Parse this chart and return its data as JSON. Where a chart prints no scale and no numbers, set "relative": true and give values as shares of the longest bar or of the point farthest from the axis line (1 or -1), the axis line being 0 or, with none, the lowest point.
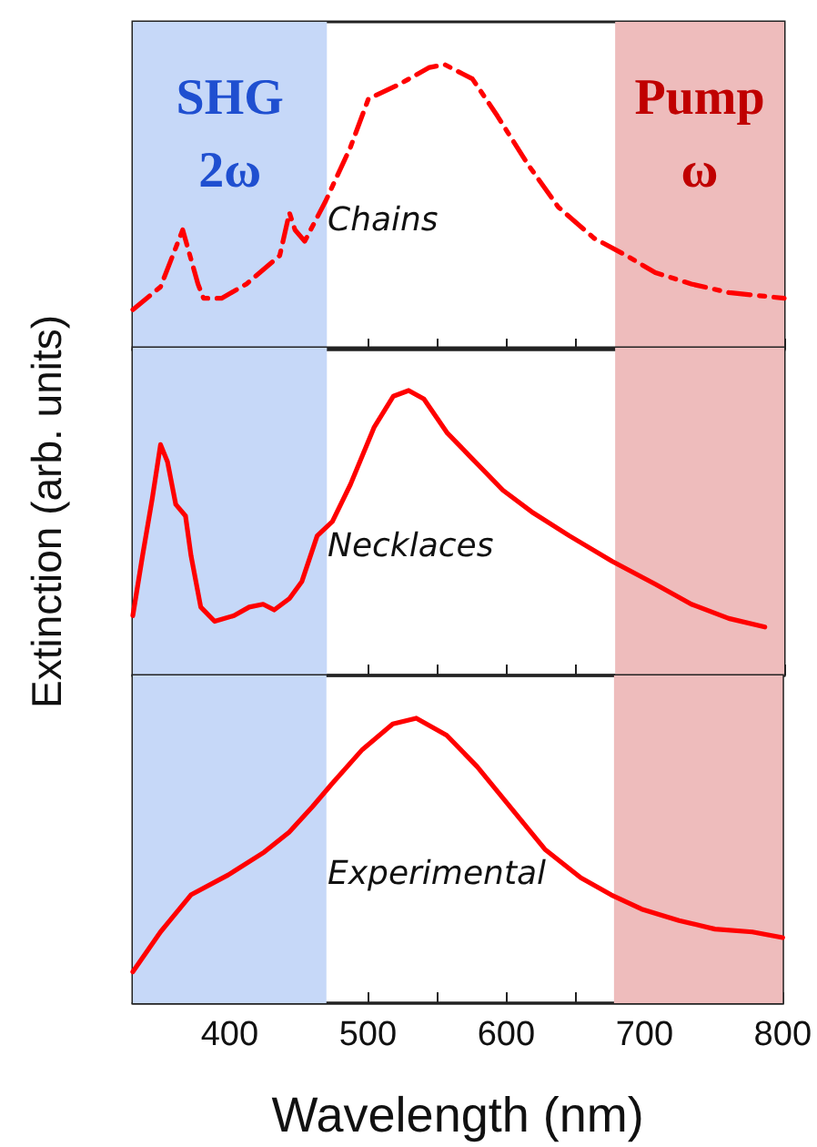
{
  "chart_data": [
    {
      "type": "line",
      "relative": true,
      "tick_labels": false,
      "xlim": [
        330,
        800
      ],
      "xticks": [
        {
          "value": 350,
          "label": null
        },
        400,
        {
          "value": 450,
          "label": null
        },
        500,
        {
          "value": 550,
          "label": null
        },
        600,
        {
          "value": 650,
          "label": null
        },
        700,
        {
          "value": 750,
          "label": null
        },
        800
      ],
      "line_style": "dashed",
      "marker": "none",
      "grid": false,
      "annotations": [
        "Chains"
      ],
      "bands": [
        {
          "axis": "x",
          "from": 330,
          "to": 470,
          "color": "#c6d8f8",
          "label": "SHG\n2ω"
        },
        {
          "axis": "x",
          "from": 678,
          "to": 800,
          "color": "#eebcbc",
          "label": "Pump\nω"
        }
      ],
      "series": [
        {
          "color": "#ff0000",
          "x": [
            330,
            350,
            366,
            377,
            381,
            394,
            412,
            436,
            443,
            447,
            454,
            469,
            487,
            500,
            522,
            544,
            555,
            575,
            593,
            615,
            637,
            663,
            686,
            707,
            733,
            760,
            800
          ],
          "values": [
            0.14,
            0.22,
            0.42,
            0.23,
            0.18,
            0.18,
            0.23,
            0.33,
            0.48,
            0.42,
            0.38,
            0.52,
            0.71,
            0.88,
            0.93,
            0.99,
            1,
            0.95,
            0.82,
            0.65,
            0.5,
            0.39,
            0.33,
            0.27,
            0.23,
            0.2,
            0.18
          ]
        }
      ]
    },
    {
      "type": "line",
      "relative": true,
      "tick_labels": false,
      "xlim": [
        330,
        800
      ],
      "xticks": [
        {
          "value": 350,
          "label": null
        },
        400,
        {
          "value": 450,
          "label": null
        },
        500,
        {
          "value": 550,
          "label": null
        },
        600,
        {
          "value": 650,
          "label": null
        },
        700,
        {
          "value": 750,
          "label": null
        },
        800
      ],
      "line_style": "solid",
      "marker": "none",
      "grid": false,
      "ylabel": "Extinction (arb. units)",
      "annotations": [
        "Necklaces"
      ],
      "bands": [
        {
          "axis": "x",
          "from": 330,
          "to": 470,
          "color": "#c6d8f8"
        },
        {
          "axis": "x",
          "from": 678,
          "to": 800,
          "color": "#eebcbc"
        }
      ],
      "series": [
        {
          "color": "#ff0000",
          "x": [
            330,
            337,
            344,
            350,
            355,
            361,
            368,
            372,
            379,
            389,
            403,
            414,
            424,
            432,
            443,
            452,
            463,
            474,
            487,
            504,
            518,
            529,
            540,
            557,
            575,
            597,
            619,
            645,
            676,
            707,
            733,
            760,
            786
          ],
          "values": [
            0.21,
            0.42,
            0.62,
            0.81,
            0.75,
            0.6,
            0.56,
            0.42,
            0.24,
            0.19,
            0.21,
            0.24,
            0.25,
            0.23,
            0.27,
            0.33,
            0.49,
            0.54,
            0.67,
            0.87,
            0.98,
            1,
            0.97,
            0.85,
            0.76,
            0.65,
            0.57,
            0.49,
            0.4,
            0.32,
            0.25,
            0.2,
            0.17
          ]
        }
      ]
    },
    {
      "type": "line",
      "relative": true,
      "tick_labels": "x",
      "xlim": [
        330,
        800
      ],
      "xticks": [
        {
          "value": 350,
          "label": null
        },
        400,
        {
          "value": 450,
          "label": null
        },
        500,
        {
          "value": 550,
          "label": null
        },
        600,
        {
          "value": 650,
          "label": null
        },
        700,
        {
          "value": 750,
          "label": null
        },
        800
      ],
      "line_style": "solid",
      "marker": "none",
      "grid": false,
      "xlabel": "Wavelength (nm)",
      "annotations": [
        "Experimental"
      ],
      "bands": [
        {
          "axis": "x",
          "from": 330,
          "to": 470,
          "color": "#c6d8f8"
        },
        {
          "axis": "x",
          "from": 678,
          "to": 800,
          "color": "#eebcbc"
        }
      ],
      "series": [
        {
          "color": "#ff0000",
          "x": [
            330,
            350,
            372,
            399,
            425,
            443,
            460,
            474,
            496,
            518,
            535,
            557,
            579,
            601,
            628,
            654,
            676,
            698,
            725,
            751,
            778,
            800
          ],
          "values": [
            0.11,
            0.25,
            0.38,
            0.45,
            0.53,
            0.6,
            0.69,
            0.77,
            0.89,
            0.98,
            1,
            0.94,
            0.83,
            0.7,
            0.54,
            0.44,
            0.38,
            0.33,
            0.29,
            0.26,
            0.25,
            0.23
          ]
        }
      ]
    }
  ]
}
